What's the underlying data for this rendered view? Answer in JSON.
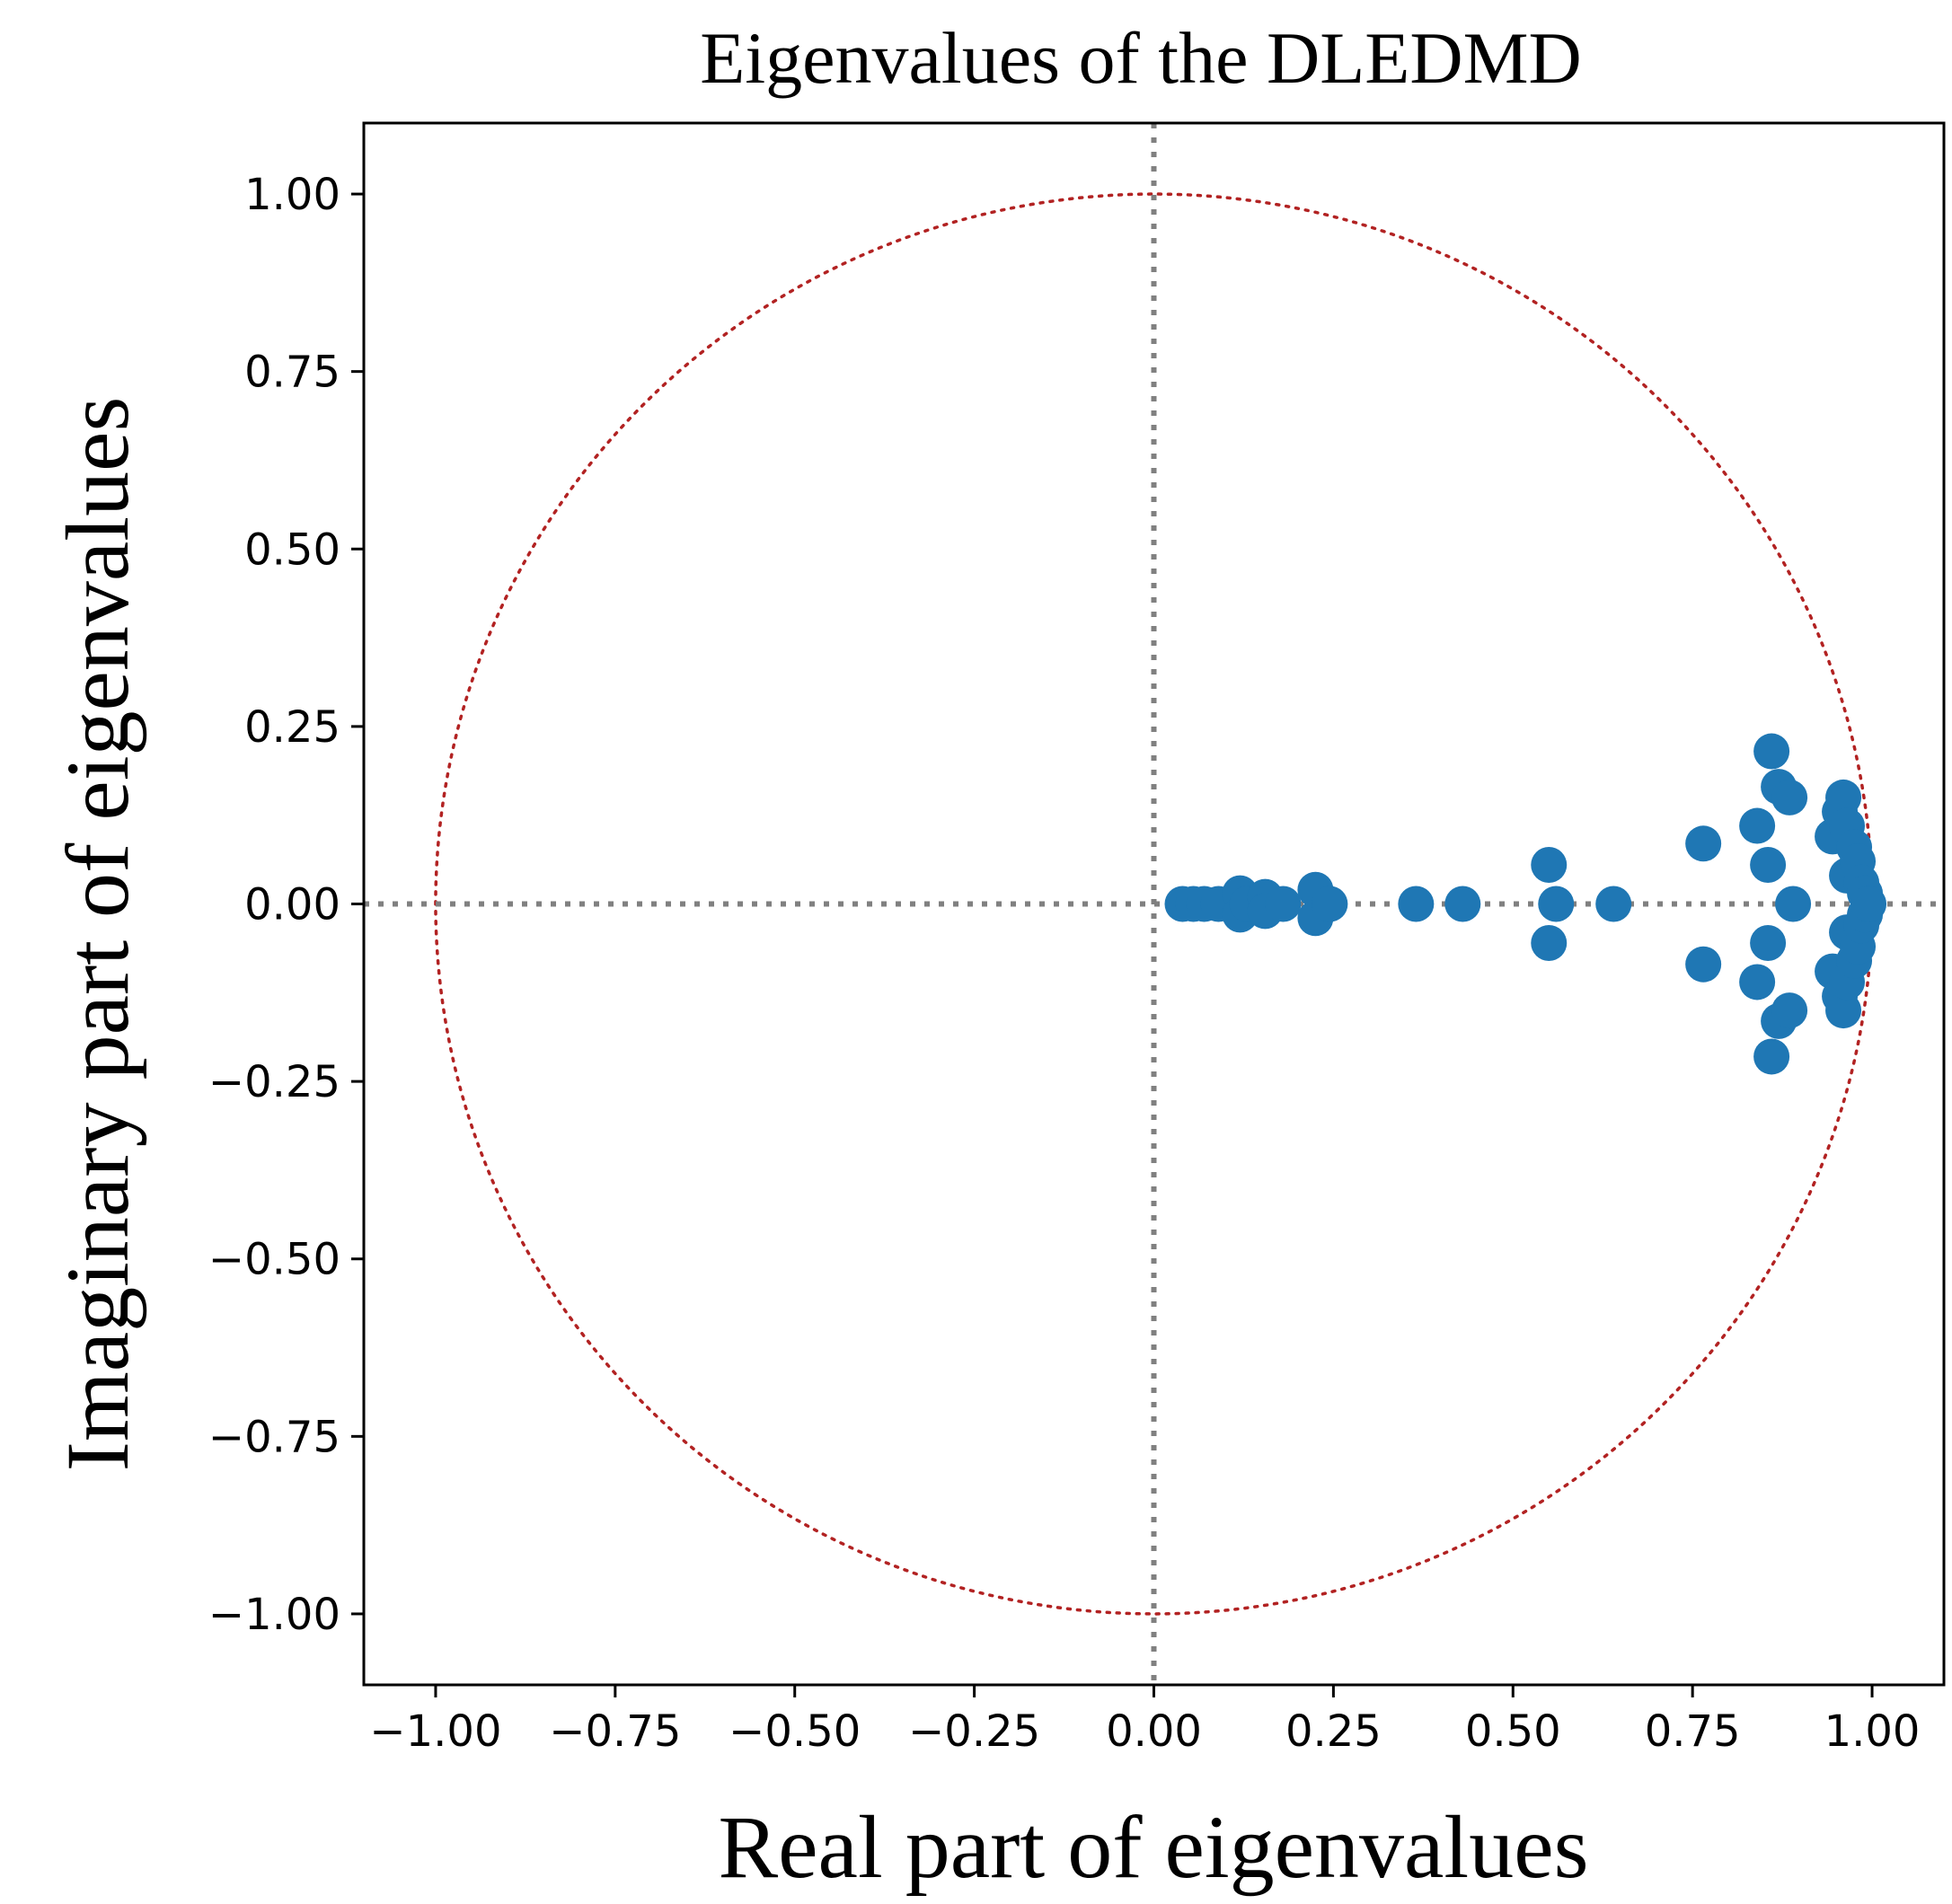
{
  "chart_data": {
    "type": "scatter",
    "title": "Eigenvalues of the DLEDMD",
    "xlabel": "Real part of eigenvalues",
    "ylabel": "Imaginary part of eigenvalues",
    "xlim": [
      -1.1,
      1.1
    ],
    "ylim": [
      -1.1,
      1.1
    ],
    "xticks": [
      -1.0,
      -0.75,
      -0.5,
      -0.25,
      0.0,
      0.25,
      0.5,
      0.75,
      1.0
    ],
    "yticks": [
      -1.0,
      -0.75,
      -0.5,
      -0.25,
      0.0,
      0.25,
      0.5,
      0.75,
      1.0
    ],
    "xtick_labels": [
      "−1.00",
      "−0.75",
      "−0.50",
      "−0.25",
      "0.00",
      "0.25",
      "0.50",
      "0.75",
      "1.00"
    ],
    "ytick_labels": [
      "−1.00",
      "−0.75",
      "−0.50",
      "−0.25",
      "0.00",
      "0.25",
      "0.50",
      "0.75",
      "1.00"
    ],
    "grid": false,
    "reference_lines": {
      "horizontal_y": 0.0,
      "vertical_x": 0.0,
      "color": "#808080",
      "style": "dotted"
    },
    "unit_circle": {
      "radius": 1.0,
      "color": "#b22222",
      "style": "dotted"
    },
    "series": [
      {
        "name": "eigenvalues",
        "color": "#1f77b4",
        "points": [
          {
            "x": 0.04,
            "y": 0.0
          },
          {
            "x": 0.055,
            "y": 0.0
          },
          {
            "x": 0.07,
            "y": 0.0
          },
          {
            "x": 0.09,
            "y": 0.0
          },
          {
            "x": 0.12,
            "y": 0.015
          },
          {
            "x": 0.12,
            "y": -0.015
          },
          {
            "x": 0.13,
            "y": 0.0
          },
          {
            "x": 0.155,
            "y": 0.01
          },
          {
            "x": 0.155,
            "y": -0.01
          },
          {
            "x": 0.18,
            "y": 0.0
          },
          {
            "x": 0.225,
            "y": 0.02
          },
          {
            "x": 0.225,
            "y": -0.02
          },
          {
            "x": 0.245,
            "y": 0.0
          },
          {
            "x": 0.365,
            "y": 0.0
          },
          {
            "x": 0.43,
            "y": 0.0
          },
          {
            "x": 0.55,
            "y": 0.055
          },
          {
            "x": 0.55,
            "y": -0.055
          },
          {
            "x": 0.56,
            "y": 0.0
          },
          {
            "x": 0.64,
            "y": 0.0
          },
          {
            "x": 0.765,
            "y": 0.085
          },
          {
            "x": 0.765,
            "y": -0.085
          },
          {
            "x": 0.84,
            "y": 0.11
          },
          {
            "x": 0.84,
            "y": -0.11
          },
          {
            "x": 0.855,
            "y": 0.055
          },
          {
            "x": 0.855,
            "y": -0.055
          },
          {
            "x": 0.86,
            "y": 0.215
          },
          {
            "x": 0.86,
            "y": -0.215
          },
          {
            "x": 0.87,
            "y": 0.165
          },
          {
            "x": 0.87,
            "y": -0.165
          },
          {
            "x": 0.885,
            "y": 0.15
          },
          {
            "x": 0.885,
            "y": -0.15
          },
          {
            "x": 0.89,
            "y": 0.0
          },
          {
            "x": 0.945,
            "y": 0.095
          },
          {
            "x": 0.945,
            "y": -0.095
          },
          {
            "x": 0.955,
            "y": 0.13
          },
          {
            "x": 0.955,
            "y": -0.13
          },
          {
            "x": 0.96,
            "y": 0.15
          },
          {
            "x": 0.96,
            "y": -0.15
          },
          {
            "x": 0.965,
            "y": 0.11
          },
          {
            "x": 0.965,
            "y": -0.11
          },
          {
            "x": 0.965,
            "y": 0.04
          },
          {
            "x": 0.965,
            "y": -0.04
          },
          {
            "x": 0.975,
            "y": 0.08
          },
          {
            "x": 0.975,
            "y": -0.08
          },
          {
            "x": 0.98,
            "y": 0.06
          },
          {
            "x": 0.98,
            "y": -0.06
          },
          {
            "x": 0.985,
            "y": 0.03
          },
          {
            "x": 0.985,
            "y": -0.03
          },
          {
            "x": 0.99,
            "y": 0.015
          },
          {
            "x": 0.99,
            "y": -0.015
          },
          {
            "x": 0.995,
            "y": 0.0
          }
        ]
      }
    ]
  }
}
